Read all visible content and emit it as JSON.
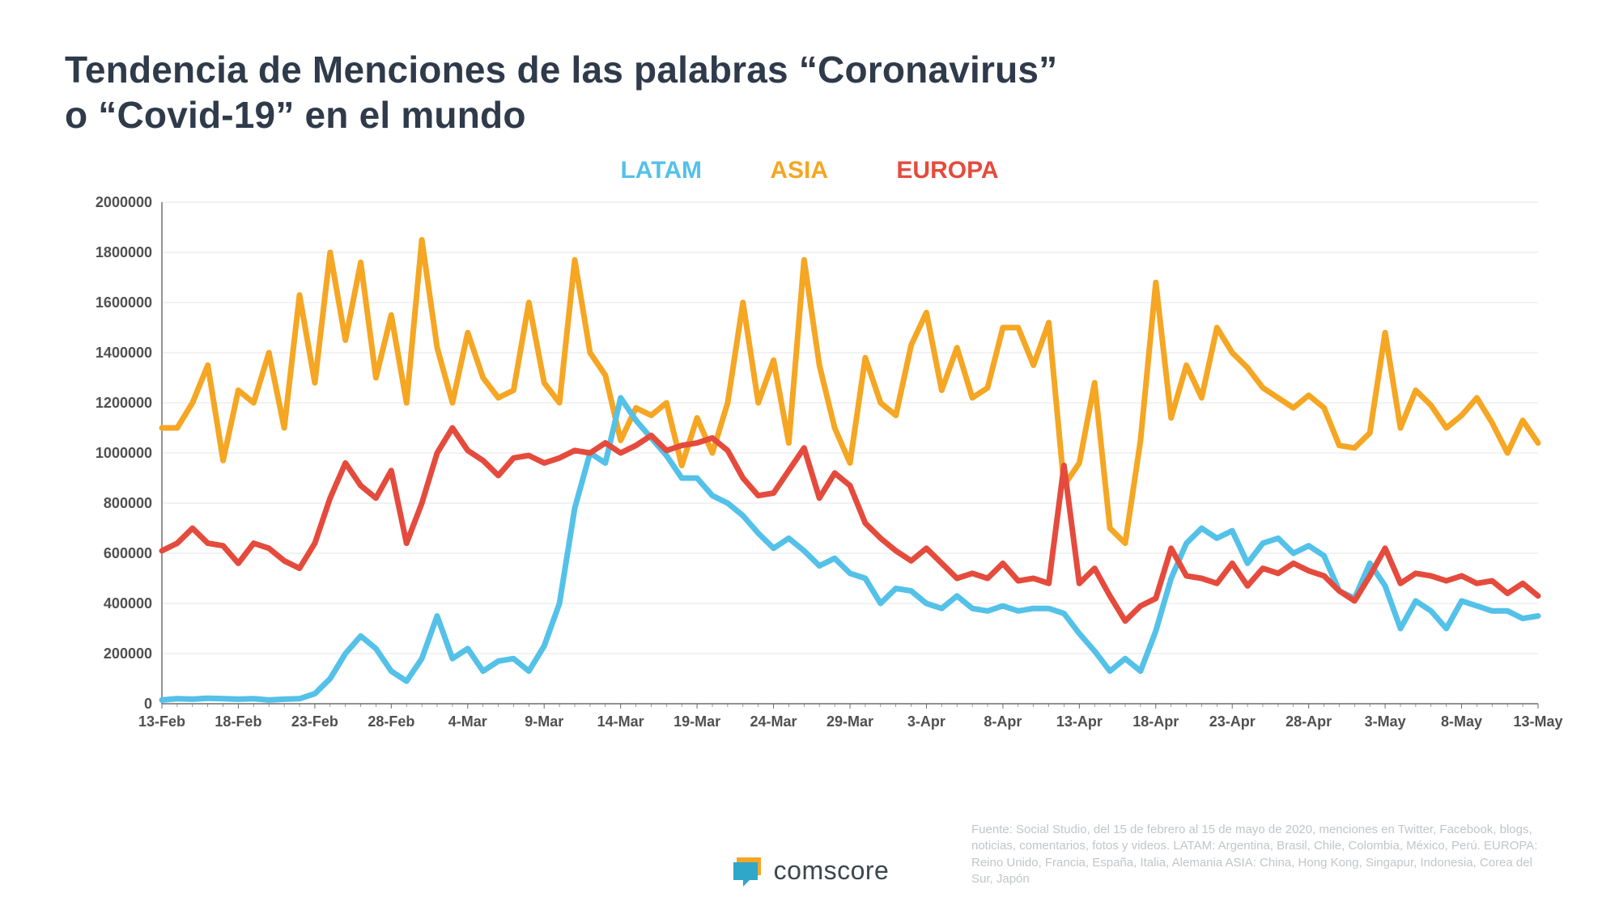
{
  "title_line1": "Tendencia de Menciones de las palabras “Coronavirus”",
  "title_line2": "o “Covid-19” en el mundo",
  "legend": {
    "latam": "LATAM",
    "asia": "ASIA",
    "europa": "EUROPA"
  },
  "chart": {
    "type": "line",
    "background_color": "#ffffff",
    "grid_color": "#e6e6e6",
    "axis_color": "#6e6e6e",
    "tick_label_color": "#505050",
    "tick_fontsize": 18,
    "line_width": 7,
    "y": {
      "min": 0,
      "max": 2000000,
      "step": 200000
    },
    "x_labels": [
      "13-Feb",
      "18-Feb",
      "23-Feb",
      "28-Feb",
      "4-Mar",
      "9-Mar",
      "14-Mar",
      "19-Mar",
      "24-Mar",
      "29-Mar",
      "3-Apr",
      "8-Apr",
      "13-Apr",
      "18-Apr",
      "23-Apr",
      "28-Apr",
      "3-May",
      "8-May",
      "13-May"
    ],
    "n_points": 91,
    "series": {
      "asia": {
        "color": "#f5a623",
        "values": [
          1100000,
          1100000,
          1200000,
          1350000,
          970000,
          1250000,
          1200000,
          1400000,
          1100000,
          1630000,
          1280000,
          1800000,
          1450000,
          1760000,
          1300000,
          1550000,
          1200000,
          1850000,
          1420000,
          1200000,
          1480000,
          1300000,
          1220000,
          1250000,
          1600000,
          1280000,
          1200000,
          1770000,
          1400000,
          1310000,
          1050000,
          1180000,
          1150000,
          1200000,
          950000,
          1140000,
          1000000,
          1200000,
          1600000,
          1200000,
          1370000,
          1040000,
          1770000,
          1350000,
          1100000,
          960000,
          1380000,
          1200000,
          1150000,
          1430000,
          1560000,
          1250000,
          1420000,
          1220000,
          1260000,
          1500000,
          1500000,
          1350000,
          1520000,
          870000,
          960000,
          1280000,
          700000,
          640000,
          1050000,
          1680000,
          1140000,
          1350000,
          1220000,
          1500000,
          1400000,
          1340000,
          1260000,
          1220000,
          1180000,
          1230000,
          1180000,
          1030000,
          1020000,
          1080000,
          1480000,
          1100000,
          1250000,
          1190000,
          1100000,
          1150000,
          1220000,
          1120000,
          1000000,
          1130000,
          1040000
        ]
      },
      "latam": {
        "color": "#54c1e8",
        "values": [
          15000,
          20000,
          18000,
          22000,
          20000,
          18000,
          20000,
          15000,
          18000,
          20000,
          40000,
          100000,
          200000,
          270000,
          220000,
          130000,
          90000,
          180000,
          350000,
          180000,
          220000,
          130000,
          170000,
          180000,
          130000,
          230000,
          400000,
          780000,
          1000000,
          960000,
          1220000,
          1130000,
          1060000,
          990000,
          900000,
          900000,
          830000,
          800000,
          750000,
          680000,
          620000,
          660000,
          610000,
          550000,
          580000,
          520000,
          500000,
          400000,
          460000,
          450000,
          400000,
          380000,
          430000,
          380000,
          370000,
          390000,
          370000,
          380000,
          380000,
          360000,
          280000,
          210000,
          130000,
          180000,
          130000,
          290000,
          500000,
          640000,
          700000,
          660000,
          690000,
          560000,
          640000,
          660000,
          600000,
          630000,
          590000,
          450000,
          420000,
          560000,
          470000,
          300000,
          410000,
          370000,
          300000,
          410000,
          390000,
          370000,
          370000,
          340000,
          350000
        ]
      },
      "europa": {
        "color": "#e54b3c",
        "values": [
          610000,
          640000,
          700000,
          640000,
          630000,
          560000,
          640000,
          620000,
          570000,
          540000,
          640000,
          820000,
          960000,
          870000,
          820000,
          930000,
          640000,
          800000,
          1000000,
          1100000,
          1010000,
          970000,
          910000,
          980000,
          990000,
          960000,
          980000,
          1010000,
          1000000,
          1040000,
          1000000,
          1030000,
          1070000,
          1010000,
          1030000,
          1040000,
          1060000,
          1010000,
          900000,
          830000,
          840000,
          930000,
          1020000,
          820000,
          920000,
          870000,
          720000,
          660000,
          610000,
          570000,
          620000,
          560000,
          500000,
          520000,
          500000,
          560000,
          490000,
          500000,
          480000,
          950000,
          480000,
          540000,
          430000,
          330000,
          390000,
          420000,
          620000,
          510000,
          500000,
          480000,
          560000,
          470000,
          540000,
          520000,
          560000,
          530000,
          510000,
          450000,
          410000,
          510000,
          620000,
          480000,
          520000,
          510000,
          490000,
          510000,
          480000,
          490000,
          440000,
          480000,
          430000
        ]
      }
    }
  },
  "logo_text": "comscore",
  "logo_colors": {
    "back": "#f5a623",
    "front": "#2ea7c9"
  },
  "source_text": "Fuente: Social Studio, del 15 de febrero al 15 de mayo de 2020, menciones en Twitter, Facebook, blogs, noticias, comentarios, fotos y videos. LATAM: Argentina, Brasil, Chile, Colombia, México, Perú. EUROPA: Reino Unido, Francia, España, Italia, Alemania ASIA: China, Hong Kong, Singapur, Indonesia, Corea del Sur, Japón"
}
